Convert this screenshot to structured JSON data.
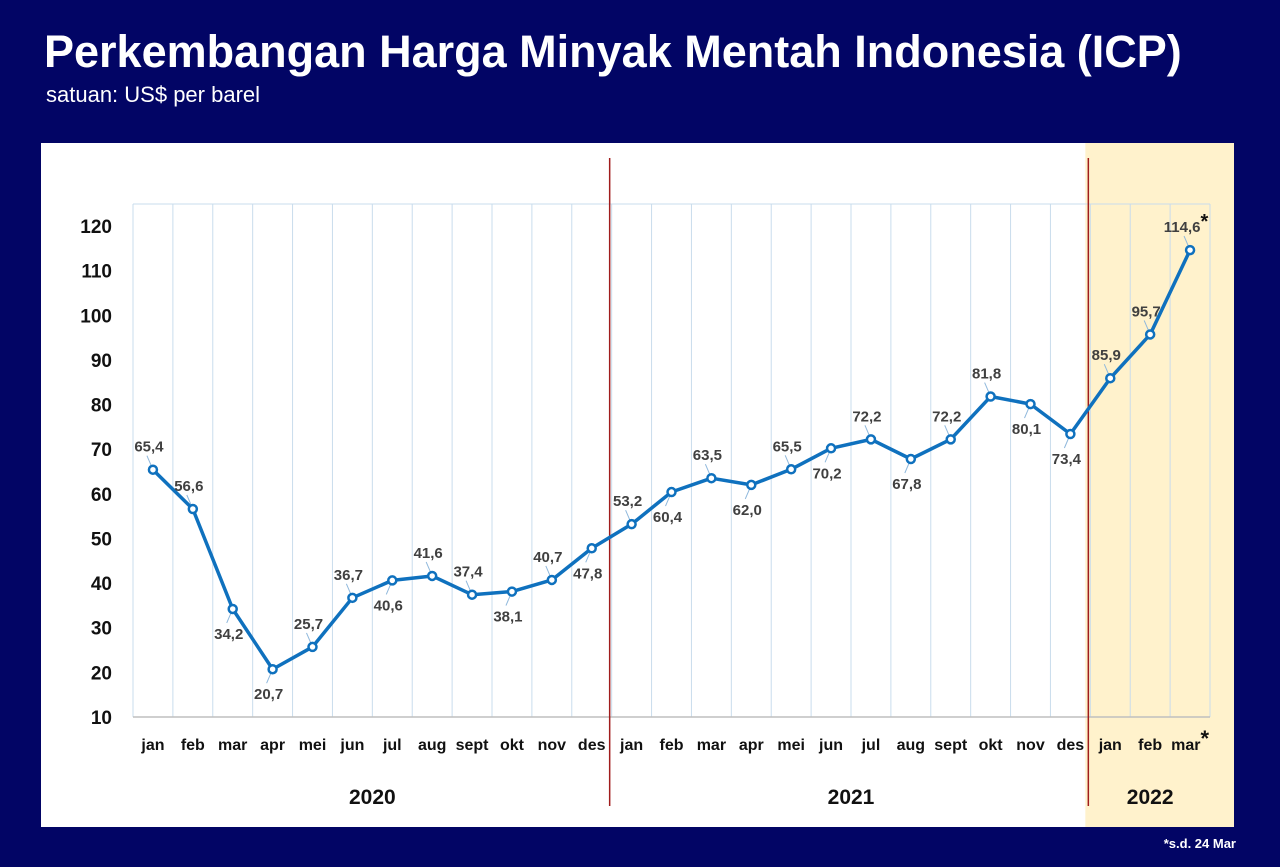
{
  "header": {
    "title": "Perkembangan Harga Minyak Mentah Indonesia (ICP)",
    "subtitle": "satuan: US$ per barel"
  },
  "footnote": "*s.d. 24 Mar",
  "colors": {
    "background": "#020565",
    "line": "#0f71be",
    "highlight": "#fff2cc",
    "divider": "#a01c1c",
    "grid": "#c9dcec"
  },
  "chart_data": {
    "type": "line",
    "title": "Perkembangan Harga Minyak Mentah Indonesia (ICP)",
    "ylabel": "US$ per barel",
    "ylim": [
      10,
      120
    ],
    "yticks": [
      10,
      20,
      30,
      40,
      50,
      60,
      70,
      80,
      90,
      100,
      110,
      120
    ],
    "grid": "vertical",
    "categories": [
      "jan",
      "feb",
      "mar",
      "apr",
      "mei",
      "jun",
      "jul",
      "aug",
      "sept",
      "okt",
      "nov",
      "des",
      "jan",
      "feb",
      "mar",
      "apr",
      "mei",
      "jun",
      "jul",
      "aug",
      "sept",
      "okt",
      "nov",
      "des",
      "jan",
      "feb",
      "mar*"
    ],
    "years": [
      {
        "label": "2020",
        "months": 12
      },
      {
        "label": "2021",
        "months": 12
      },
      {
        "label": "2022",
        "months": 3,
        "highlighted": true
      }
    ],
    "series": [
      {
        "name": "ICP",
        "values": [
          65.4,
          56.6,
          34.2,
          20.7,
          25.7,
          36.7,
          40.6,
          41.6,
          37.4,
          38.1,
          40.7,
          47.8,
          53.2,
          60.4,
          63.5,
          62.0,
          65.5,
          70.2,
          72.2,
          67.8,
          72.2,
          81.8,
          80.1,
          73.4,
          85.9,
          95.7,
          114.6
        ],
        "labels": [
          "65,4",
          "56,6",
          "34,2",
          "20,7",
          "25,7",
          "36,7",
          "40,6",
          "41,6",
          "37,4",
          "38,1",
          "40,7",
          "47,8",
          "53,2",
          "60,4",
          "63,5",
          "62,0",
          "65,5",
          "70,2",
          "72,2",
          "67,8",
          "72,2",
          "81,8",
          "80,1",
          "73,4",
          "85,9",
          "95,7",
          "114,6*"
        ],
        "label_side": [
          "above",
          "above",
          "below",
          "below",
          "above",
          "above",
          "below",
          "above",
          "above",
          "below",
          "above",
          "below",
          "above",
          "below",
          "above",
          "below",
          "above",
          "below",
          "above",
          "below",
          "above",
          "above",
          "below",
          "below",
          "above",
          "above",
          "above"
        ]
      }
    ]
  }
}
